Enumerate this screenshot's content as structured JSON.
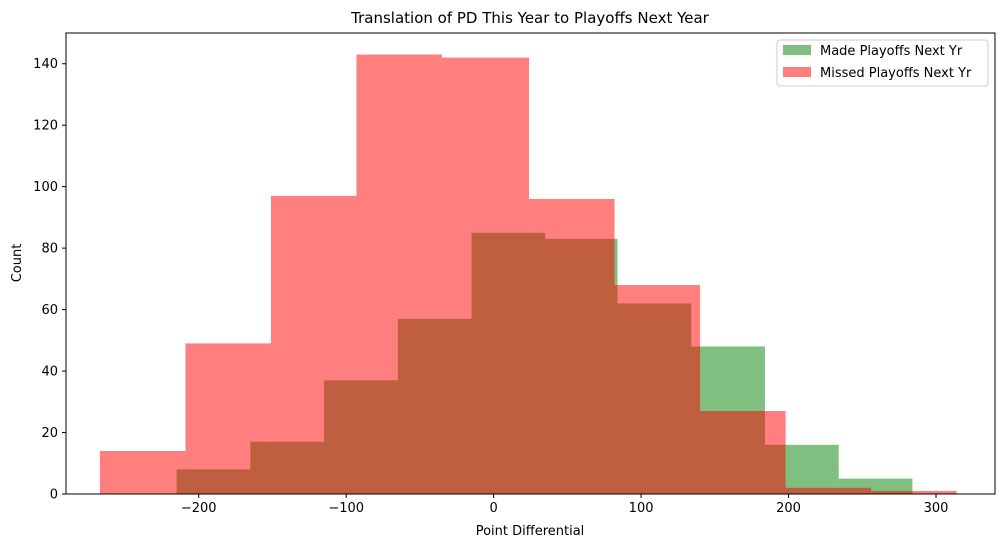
{
  "chart_data": {
    "type": "bar",
    "title": "Translation of PD This Year to Playoffs Next Year",
    "xlabel": "Point Differential",
    "ylabel": "Count",
    "xlim": [
      -290,
      340
    ],
    "ylim": [
      0,
      150
    ],
    "xticks": [
      -200,
      -100,
      0,
      100,
      200,
      300
    ],
    "xtick_labels": [
      "−200",
      "−100",
      "0",
      "100",
      "200",
      "300"
    ],
    "yticks": [
      0,
      20,
      40,
      60,
      80,
      100,
      120,
      140
    ],
    "yticks_labels": [
      "0",
      "20",
      "40",
      "60",
      "80",
      "100",
      "120",
      "140"
    ],
    "legend_position": "top-right",
    "grid": false,
    "series": [
      {
        "name": "Made Playoffs Next Yr",
        "color": "#008000",
        "alpha": 0.5,
        "bins": [
          {
            "x0": -215,
            "x1": -165,
            "count": 8
          },
          {
            "x0": -165,
            "x1": -115,
            "count": 17
          },
          {
            "x0": -115,
            "x1": -65,
            "count": 37
          },
          {
            "x0": -65,
            "x1": -15,
            "count": 57
          },
          {
            "x0": -15,
            "x1": 35,
            "count": 85
          },
          {
            "x0": 35,
            "x1": 84,
            "count": 83
          },
          {
            "x0": 84,
            "x1": 134,
            "count": 62
          },
          {
            "x0": 134,
            "x1": 184,
            "count": 48
          },
          {
            "x0": 184,
            "x1": 234,
            "count": 16
          },
          {
            "x0": 234,
            "x1": 284,
            "count": 5
          }
        ]
      },
      {
        "name": "Missed Playoffs Next Yr",
        "color": "#ff0000",
        "alpha": 0.5,
        "bins": [
          {
            "x0": -267,
            "x1": -209,
            "count": 14
          },
          {
            "x0": -209,
            "x1": -151,
            "count": 49
          },
          {
            "x0": -151,
            "x1": -93,
            "count": 97
          },
          {
            "x0": -93,
            "x1": -35,
            "count": 143
          },
          {
            "x0": -35,
            "x1": 24,
            "count": 142
          },
          {
            "x0": 24,
            "x1": 82,
            "count": 96
          },
          {
            "x0": 82,
            "x1": 140,
            "count": 68
          },
          {
            "x0": 140,
            "x1": 198,
            "count": 27
          },
          {
            "x0": 198,
            "x1": 256,
            "count": 2
          },
          {
            "x0": 256,
            "x1": 314,
            "count": 1
          }
        ]
      }
    ]
  }
}
